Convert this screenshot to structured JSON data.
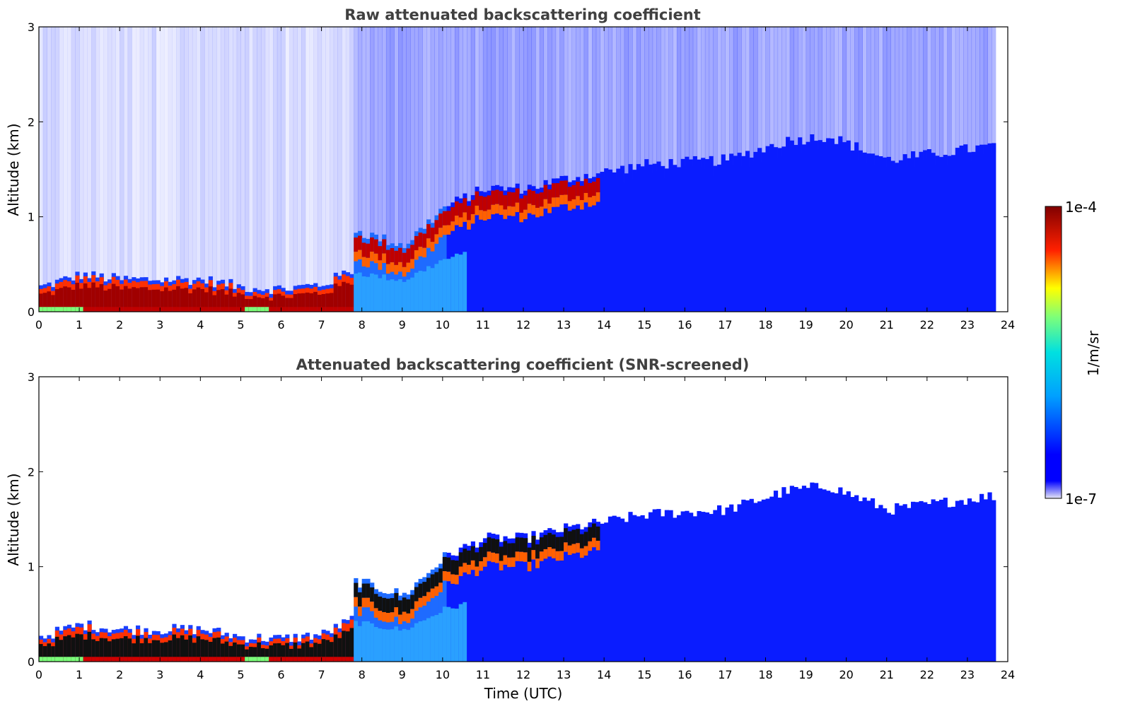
{
  "chart_data": [
    {
      "type": "heatmap",
      "title": "Raw attenuated backscattering coefficient",
      "xlabel": "",
      "ylabel": "Altitude (km)",
      "xlim": [
        0,
        24
      ],
      "ylim": [
        0,
        3
      ],
      "xticks": [
        0,
        1,
        2,
        3,
        4,
        5,
        6,
        7,
        8,
        9,
        10,
        11,
        12,
        13,
        14,
        15,
        16,
        17,
        18,
        19,
        20,
        21,
        22,
        23,
        24
      ],
      "yticks": [
        0,
        1,
        2,
        3
      ],
      "data_end_time": 23.65,
      "screened": false,
      "boundary_layer_top_km": [
        {
          "t": 0,
          "z": 0.22
        },
        {
          "t": 1,
          "z": 0.35
        },
        {
          "t": 2,
          "z": 0.3
        },
        {
          "t": 3,
          "z": 0.3
        },
        {
          "t": 4,
          "z": 0.3
        },
        {
          "t": 5,
          "z": 0.22
        },
        {
          "t": 6,
          "z": 0.2
        },
        {
          "t": 7,
          "z": 0.25
        },
        {
          "t": 7.7,
          "z": 0.4
        },
        {
          "t": 7.8,
          "z": 0.75
        },
        {
          "t": 9,
          "z": 0.6
        },
        {
          "t": 10,
          "z": 1.0
        },
        {
          "t": 11,
          "z": 1.2
        },
        {
          "t": 12,
          "z": 1.2
        },
        {
          "t": 13,
          "z": 1.3
        },
        {
          "t": 13.7,
          "z": 1.35
        },
        {
          "t": 15,
          "z": 1.45
        },
        {
          "t": 17,
          "z": 1.5
        },
        {
          "t": 18.5,
          "z": 1.7
        },
        {
          "t": 19.5,
          "z": 1.75
        },
        {
          "t": 21,
          "z": 1.5
        },
        {
          "t": 23.65,
          "z": 1.65
        }
      ]
    },
    {
      "type": "heatmap",
      "title": "Attenuated backscattering coefficient (SNR-screened)",
      "xlabel": "Time (UTC)",
      "ylabel": "Altitude (km)",
      "xlim": [
        0,
        24
      ],
      "ylim": [
        0,
        3
      ],
      "xticks": [
        0,
        1,
        2,
        3,
        4,
        5,
        6,
        7,
        8,
        9,
        10,
        11,
        12,
        13,
        14,
        15,
        16,
        17,
        18,
        19,
        20,
        21,
        22,
        23,
        24
      ],
      "yticks": [
        0,
        1,
        2,
        3
      ],
      "data_end_time": 23.65,
      "screened": true
    }
  ],
  "colorbar": {
    "min_label": "1e-7",
    "max_label": "1e-4",
    "unit_label": "1/m/sr",
    "colormap": "jet",
    "colors": [
      "#e6e6f5",
      "#0000ff",
      "#00c8ff",
      "#7cff7a",
      "#ffff00",
      "#ff2000",
      "#800000"
    ]
  }
}
